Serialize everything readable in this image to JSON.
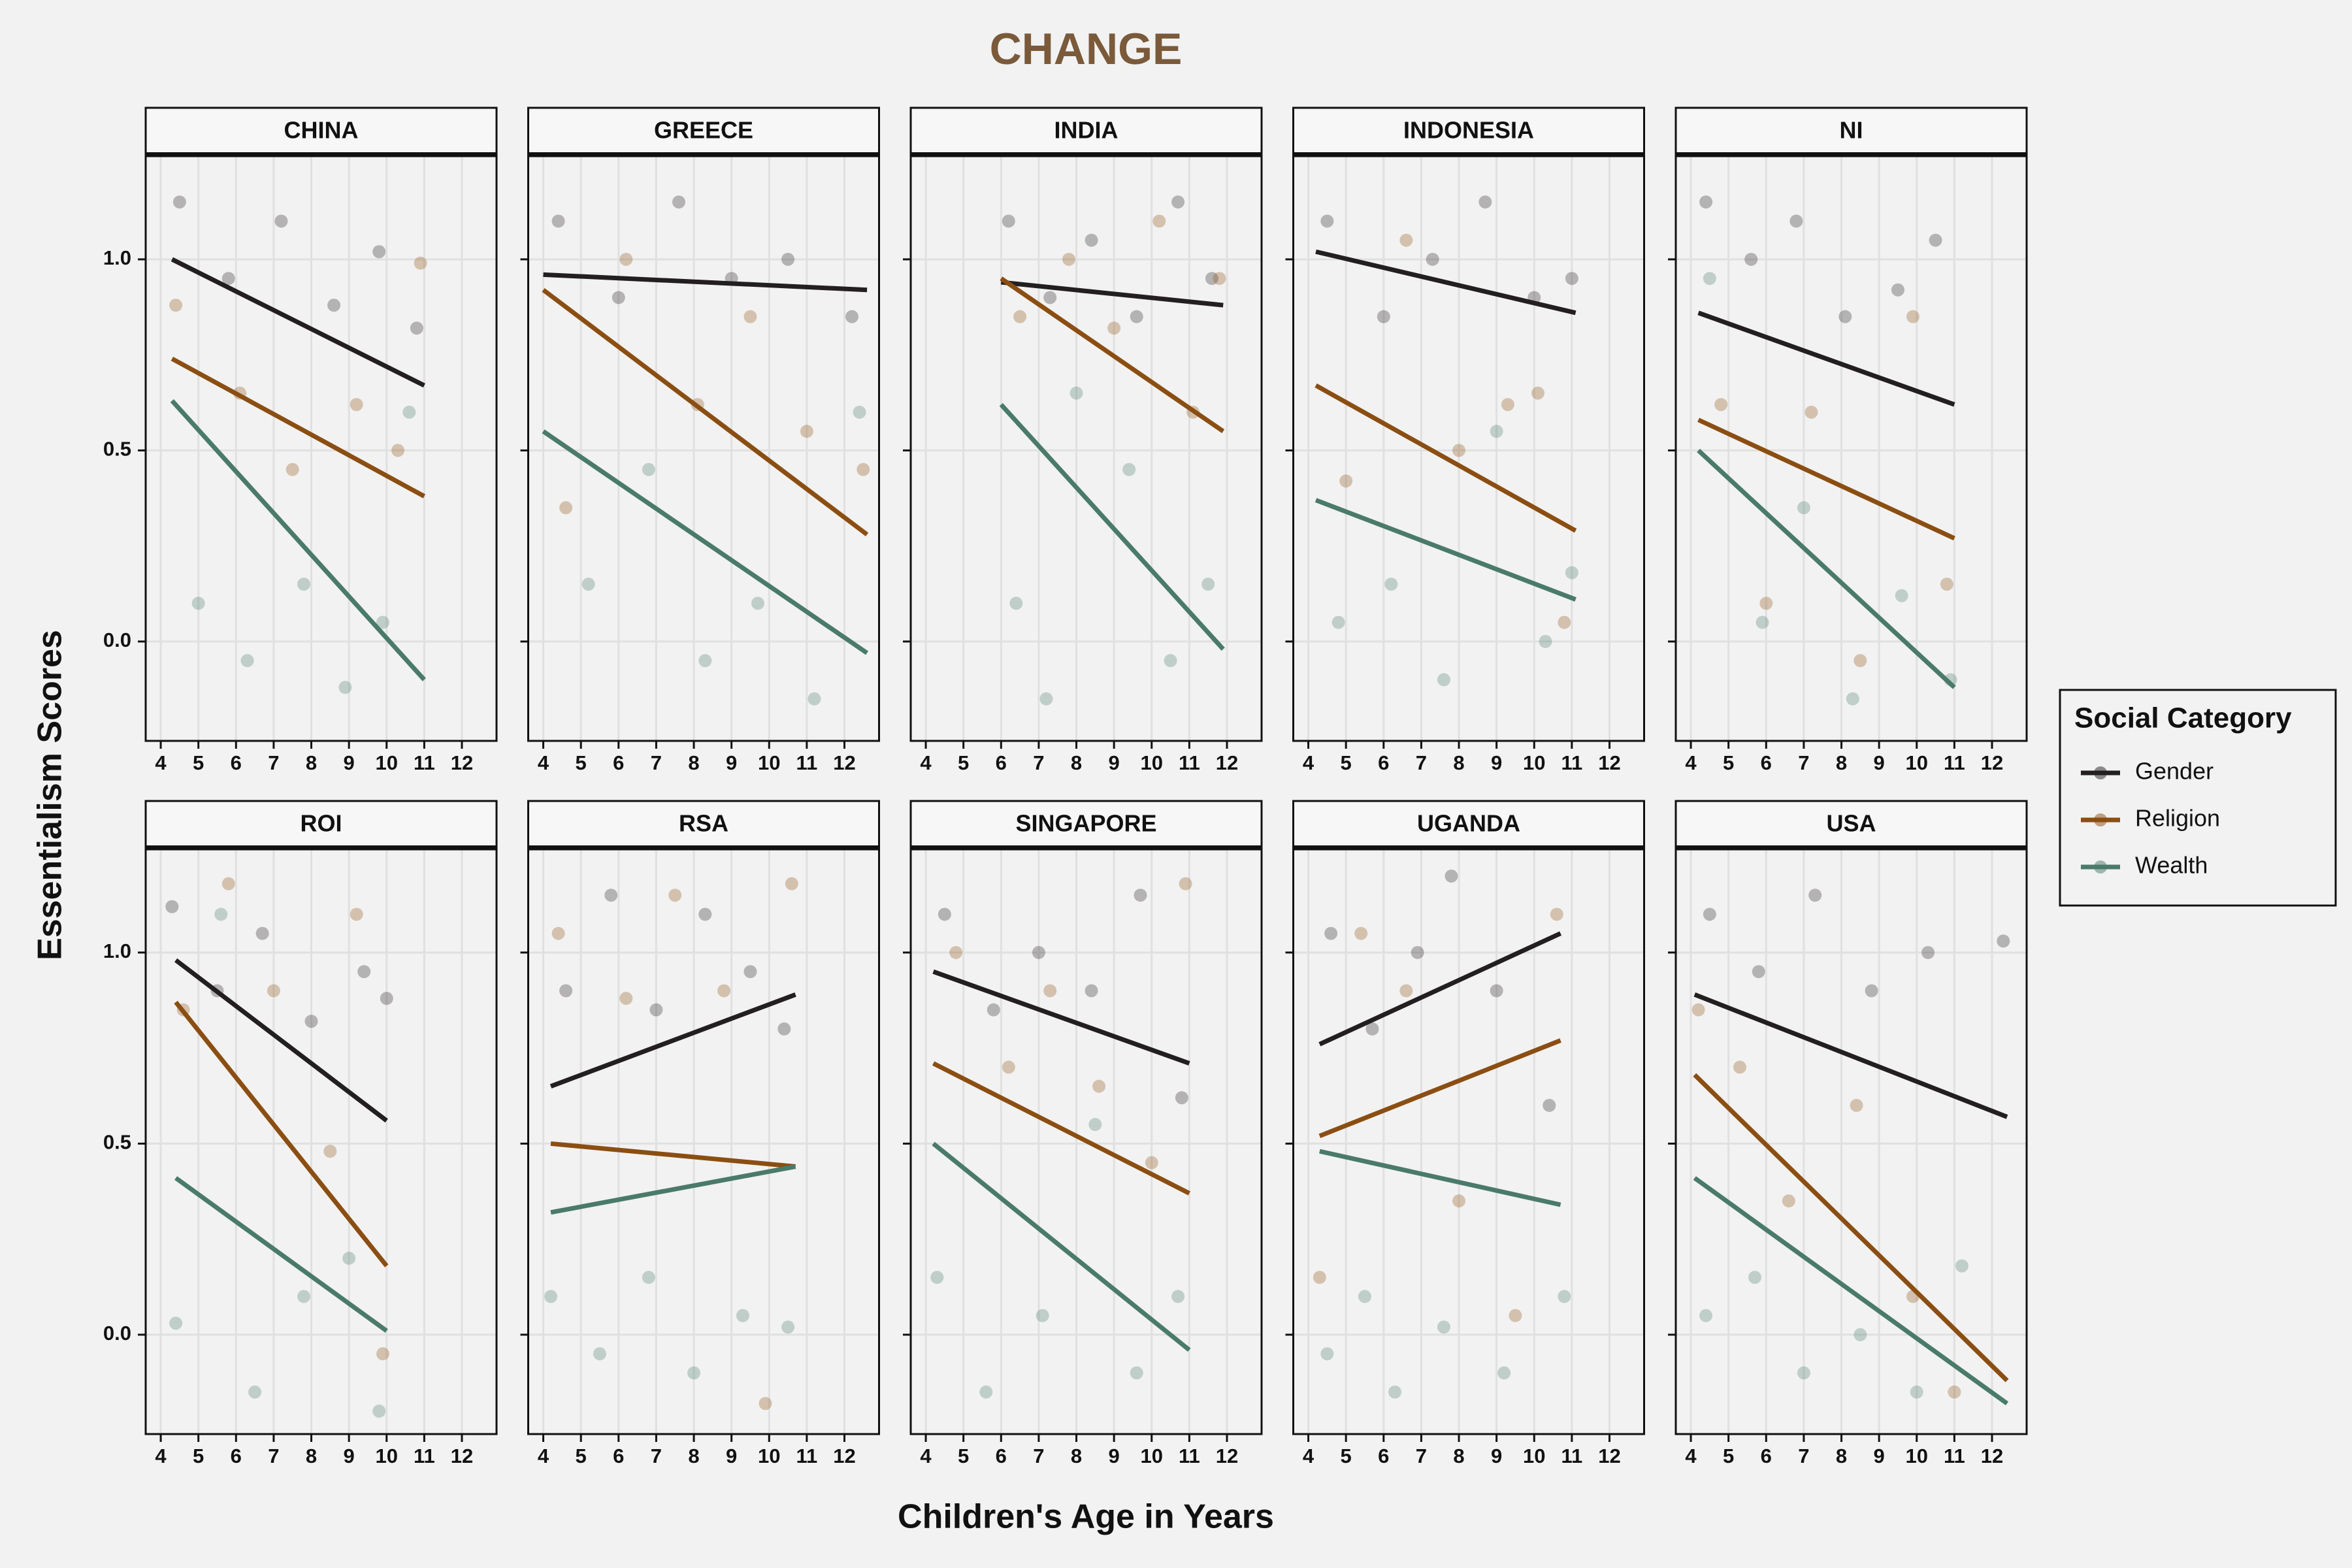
{
  "chart_data": {
    "type": "facet-scatter",
    "title": "CHANGE",
    "x_label": "Children's Age in Years",
    "y_label": "Essentialism Scores",
    "legend_title": "Social Category",
    "series": [
      {
        "name": "Gender",
        "color": "#231f20"
      },
      {
        "name": "Religion",
        "color": "#8b4e12"
      },
      {
        "name": "Wealth",
        "color": "#4a7a6a"
      }
    ],
    "xlim": [
      3.6,
      12.92
    ],
    "xticks": [
      4,
      5,
      6,
      7,
      8,
      9,
      10,
      11,
      12
    ],
    "ylim": [
      -0.26,
      1.27
    ],
    "yticks": [
      {
        "value": 0,
        "label": "0.0"
      },
      {
        "value": 0.5,
        "label": "0.5"
      },
      {
        "value": 1,
        "label": "1.0"
      }
    ],
    "grid": true,
    "panels": [
      {
        "title": "CHINA",
        "fits": [
          {
            "x": [
              4.3,
              11
            ],
            "values": [
              1.0,
              0.67
            ]
          },
          {
            "x": [
              4.3,
              11
            ],
            "values": [
              0.74,
              0.38
            ]
          },
          {
            "x": [
              4.3,
              11
            ],
            "values": [
              0.63,
              -0.1
            ]
          }
        ],
        "points": [
          {
            "x": [
              4.5,
              5.8,
              7.2,
              8.6,
              9.8,
              10.8
            ],
            "values": [
              1.15,
              0.95,
              1.1,
              0.88,
              1.02,
              0.82
            ]
          },
          {
            "x": [
              4.4,
              6.1,
              7.5,
              9.2,
              10.3,
              10.9
            ],
            "values": [
              0.88,
              0.65,
              0.45,
              0.62,
              0.5,
              0.99
            ]
          },
          {
            "x": [
              5,
              6.3,
              7.8,
              8.9,
              9.9,
              10.6
            ],
            "values": [
              0.1,
              -0.05,
              0.15,
              -0.12,
              0.05,
              0.6
            ]
          }
        ]
      },
      {
        "title": "GREECE",
        "fits": [
          {
            "x": [
              4,
              12.6
            ],
            "values": [
              0.96,
              0.92
            ]
          },
          {
            "x": [
              4,
              12.6
            ],
            "values": [
              0.92,
              0.28
            ]
          },
          {
            "x": [
              4,
              12.6
            ],
            "values": [
              0.55,
              -0.03
            ]
          }
        ],
        "points": [
          {
            "x": [
              4.4,
              6,
              7.6,
              9,
              10.5,
              12.2
            ],
            "values": [
              1.1,
              0.9,
              1.15,
              0.95,
              1.0,
              0.85
            ]
          },
          {
            "x": [
              4.6,
              6.2,
              8.1,
              9.5,
              11,
              12.5
            ],
            "values": [
              0.35,
              1.0,
              0.62,
              0.85,
              0.55,
              0.45
            ]
          },
          {
            "x": [
              5.2,
              6.8,
              8.3,
              9.7,
              11.2,
              12.4
            ],
            "values": [
              0.15,
              0.45,
              -0.05,
              0.1,
              -0.15,
              0.6
            ]
          }
        ]
      },
      {
        "title": "INDIA",
        "fits": [
          {
            "x": [
              6,
              11.9
            ],
            "values": [
              0.94,
              0.88
            ]
          },
          {
            "x": [
              6,
              11.9
            ],
            "values": [
              0.95,
              0.55
            ]
          },
          {
            "x": [
              6,
              11.9
            ],
            "values": [
              0.62,
              -0.02
            ]
          }
        ],
        "points": [
          {
            "x": [
              6.2,
              7.3,
              8.4,
              9.6,
              10.7,
              11.6
            ],
            "values": [
              1.1,
              0.9,
              1.05,
              0.85,
              1.15,
              0.95
            ]
          },
          {
            "x": [
              6.5,
              7.8,
              9,
              10.2,
              11.1,
              11.8
            ],
            "values": [
              0.85,
              1.0,
              0.82,
              1.1,
              0.6,
              0.95
            ]
          },
          {
            "x": [
              6.4,
              7.2,
              8,
              9.4,
              10.5,
              11.5
            ],
            "values": [
              0.1,
              -0.15,
              0.65,
              0.45,
              -0.05,
              0.15
            ]
          }
        ]
      },
      {
        "title": "INDONESIA",
        "fits": [
          {
            "x": [
              4.2,
              11.1
            ],
            "values": [
              1.02,
              0.86
            ]
          },
          {
            "x": [
              4.2,
              11.1
            ],
            "values": [
              0.67,
              0.29
            ]
          },
          {
            "x": [
              4.2,
              11.1
            ],
            "values": [
              0.37,
              0.11
            ]
          }
        ],
        "points": [
          {
            "x": [
              4.5,
              6,
              7.3,
              8.7,
              10,
              11
            ],
            "values": [
              1.1,
              0.85,
              1.0,
              1.15,
              0.9,
              0.95
            ]
          },
          {
            "x": [
              5,
              6.6,
              8,
              9.3,
              10.1,
              10.8
            ],
            "values": [
              0.42,
              1.05,
              0.5,
              0.62,
              0.65,
              0.05
            ]
          },
          {
            "x": [
              4.8,
              6.2,
              7.6,
              9,
              10.3,
              11
            ],
            "values": [
              0.05,
              0.15,
              -0.1,
              0.55,
              0.0,
              0.18
            ]
          }
        ]
      },
      {
        "title": "NI",
        "fits": [
          {
            "x": [
              4.2,
              11
            ],
            "values": [
              0.86,
              0.62
            ]
          },
          {
            "x": [
              4.2,
              11
            ],
            "values": [
              0.58,
              0.27
            ]
          },
          {
            "x": [
              4.2,
              11
            ],
            "values": [
              0.5,
              -0.12
            ]
          }
        ],
        "points": [
          {
            "x": [
              4.4,
              5.6,
              6.8,
              8.1,
              9.5,
              10.5
            ],
            "values": [
              1.15,
              1.0,
              1.1,
              0.85,
              0.92,
              1.05
            ]
          },
          {
            "x": [
              4.8,
              6,
              7.2,
              8.5,
              9.9,
              10.8
            ],
            "values": [
              0.62,
              0.1,
              0.6,
              -0.05,
              0.85,
              0.15
            ]
          },
          {
            "x": [
              4.5,
              5.9,
              7,
              8.3,
              9.6,
              10.9
            ],
            "values": [
              0.95,
              0.05,
              0.35,
              -0.15,
              0.12,
              -0.1
            ]
          }
        ]
      },
      {
        "title": "ROI",
        "fits": [
          {
            "x": [
              4.4,
              10
            ],
            "values": [
              0.98,
              0.56
            ]
          },
          {
            "x": [
              4.4,
              10
            ],
            "values": [
              0.87,
              0.18
            ]
          },
          {
            "x": [
              4.4,
              10
            ],
            "values": [
              0.41,
              0.01
            ]
          }
        ],
        "points": [
          {
            "x": [
              4.3,
              5.5,
              6.7,
              8,
              9.4,
              10
            ],
            "values": [
              1.12,
              0.9,
              1.05,
              0.82,
              0.95,
              0.88
            ]
          },
          {
            "x": [
              4.6,
              5.8,
              7,
              8.5,
              9.2,
              9.9
            ],
            "values": [
              0.85,
              1.18,
              0.9,
              0.48,
              1.1,
              -0.05
            ]
          },
          {
            "x": [
              4.4,
              5.6,
              6.5,
              7.8,
              9,
              9.8
            ],
            "values": [
              0.03,
              1.1,
              -0.15,
              0.1,
              0.2,
              -0.2
            ]
          }
        ]
      },
      {
        "title": "RSA",
        "fits": [
          {
            "x": [
              4.2,
              10.7
            ],
            "values": [
              0.65,
              0.89
            ]
          },
          {
            "x": [
              4.2,
              10.7
            ],
            "values": [
              0.5,
              0.44
            ]
          },
          {
            "x": [
              4.2,
              10.7
            ],
            "values": [
              0.32,
              0.44
            ]
          }
        ],
        "points": [
          {
            "x": [
              4.6,
              5.8,
              7,
              8.3,
              9.5,
              10.4
            ],
            "values": [
              0.9,
              1.15,
              0.85,
              1.1,
              0.95,
              0.8
            ]
          },
          {
            "x": [
              4.4,
              6.2,
              7.5,
              8.8,
              9.9,
              10.6
            ],
            "values": [
              1.05,
              0.88,
              1.15,
              0.9,
              -0.18,
              1.18
            ]
          },
          {
            "x": [
              4.2,
              5.5,
              6.8,
              8,
              9.3,
              10.5
            ],
            "values": [
              0.1,
              -0.05,
              0.15,
              -0.1,
              0.05,
              0.02
            ]
          }
        ]
      },
      {
        "title": "SINGAPORE",
        "fits": [
          {
            "x": [
              4.2,
              11
            ],
            "values": [
              0.95,
              0.71
            ]
          },
          {
            "x": [
              4.2,
              11
            ],
            "values": [
              0.71,
              0.37
            ]
          },
          {
            "x": [
              4.2,
              11
            ],
            "values": [
              0.5,
              -0.04
            ]
          }
        ],
        "points": [
          {
            "x": [
              4.5,
              5.8,
              7,
              8.4,
              9.7,
              10.8
            ],
            "values": [
              1.1,
              0.85,
              1.0,
              0.9,
              1.15,
              0.62
            ]
          },
          {
            "x": [
              4.8,
              6.2,
              7.3,
              8.6,
              10,
              10.9
            ],
            "values": [
              1.0,
              0.7,
              0.9,
              0.65,
              0.45,
              1.18
            ]
          },
          {
            "x": [
              4.3,
              5.6,
              7.1,
              8.5,
              9.6,
              10.7
            ],
            "values": [
              0.15,
              -0.15,
              0.05,
              0.55,
              -0.1,
              0.1
            ]
          }
        ]
      },
      {
        "title": "UGANDA",
        "fits": [
          {
            "x": [
              4.3,
              10.7
            ],
            "values": [
              0.76,
              1.05
            ]
          },
          {
            "x": [
              4.3,
              10.7
            ],
            "values": [
              0.52,
              0.77
            ]
          },
          {
            "x": [
              4.3,
              10.7
            ],
            "values": [
              0.48,
              0.34
            ]
          }
        ],
        "points": [
          {
            "x": [
              4.6,
              5.7,
              6.9,
              7.8,
              9,
              10.4
            ],
            "values": [
              1.05,
              0.8,
              1.0,
              1.2,
              0.9,
              0.6
            ]
          },
          {
            "x": [
              4.3,
              5.4,
              6.6,
              8,
              9.5,
              10.6
            ],
            "values": [
              0.15,
              1.05,
              0.9,
              0.35,
              0.05,
              1.1
            ]
          },
          {
            "x": [
              4.5,
              5.5,
              6.3,
              7.6,
              9.2,
              10.8
            ],
            "values": [
              -0.05,
              0.1,
              -0.15,
              0.02,
              -0.1,
              0.1
            ]
          }
        ]
      },
      {
        "title": "USA",
        "fits": [
          {
            "x": [
              4.1,
              12.4
            ],
            "values": [
              0.89,
              0.57
            ]
          },
          {
            "x": [
              4.1,
              12.4
            ],
            "values": [
              0.68,
              -0.12
            ]
          },
          {
            "x": [
              4.1,
              12.4
            ],
            "values": [
              0.41,
              -0.18
            ]
          }
        ],
        "points": [
          {
            "x": [
              4.5,
              5.8,
              7.3,
              8.8,
              10.3,
              12.3
            ],
            "values": [
              1.1,
              0.95,
              1.15,
              0.9,
              1.0,
              1.03
            ]
          },
          {
            "x": [
              4.2,
              5.3,
              6.6,
              8.4,
              9.9,
              11
            ],
            "values": [
              0.85,
              0.7,
              0.35,
              0.6,
              0.1,
              -0.15
            ]
          },
          {
            "x": [
              4.4,
              5.7,
              7,
              8.5,
              10,
              11.2
            ],
            "values": [
              0.05,
              0.15,
              -0.1,
              0.0,
              -0.15,
              0.18
            ]
          }
        ]
      }
    ]
  }
}
